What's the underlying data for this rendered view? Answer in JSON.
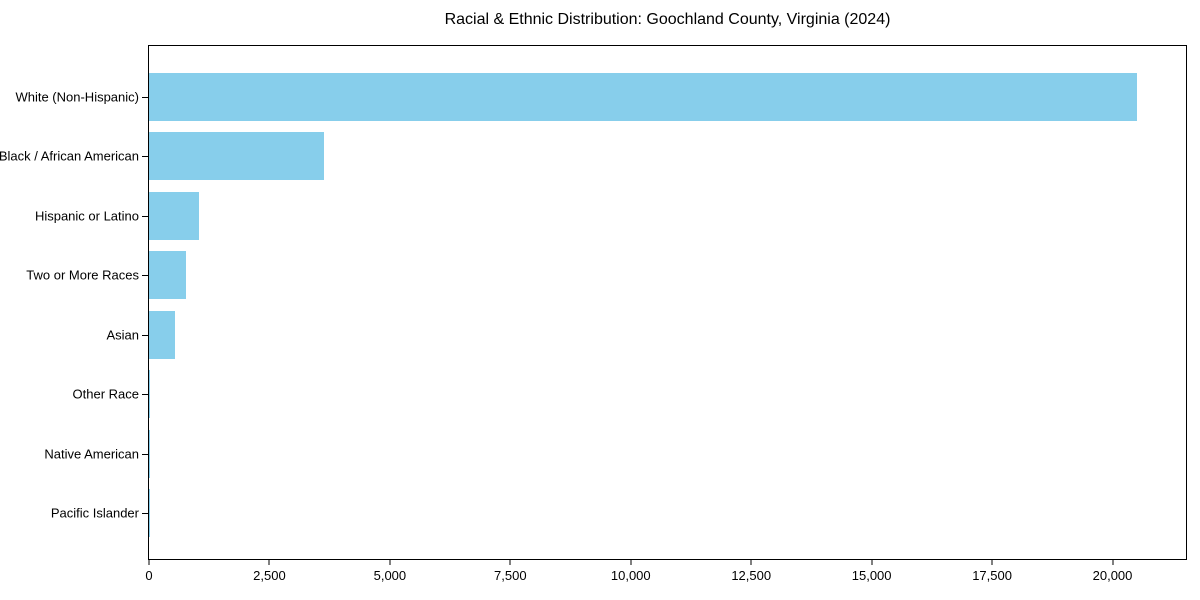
{
  "chart_data": {
    "type": "bar",
    "orientation": "horizontal",
    "title": "Racial & Ethnic Distribution: Goochland County, Virginia (2024)",
    "categories": [
      "White (Non-Hispanic)",
      "Black / African American",
      "Hispanic or Latino",
      "Two or More Races",
      "Asian",
      "Other Race",
      "Native American",
      "Pacific Islander"
    ],
    "values": [
      20500,
      3630,
      1040,
      770,
      540,
      30,
      10,
      4
    ],
    "xlabel": "",
    "ylabel": "",
    "xlim": [
      0,
      21525
    ],
    "x_ticks": [
      0,
      2500,
      5000,
      7500,
      10000,
      12500,
      15000,
      17500,
      20000
    ],
    "x_tick_labels": [
      "0",
      "2,500",
      "5,000",
      "7,500",
      "10,000",
      "12,500",
      "15,000",
      "17,500",
      "20,000"
    ],
    "bar_color": "#87CEEB",
    "axis_color": "#000000",
    "text_color": "#000000",
    "background_color": "#ffffff",
    "grid": false,
    "legend": null
  }
}
